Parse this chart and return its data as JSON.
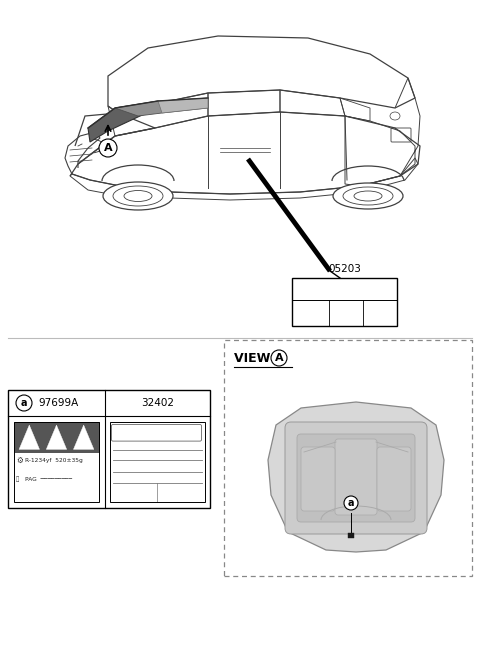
{
  "bg_color": "#ffffff",
  "label_ref": "05203",
  "part_a_code": "97699A",
  "part_b_code": "32402",
  "view_label": "VIEW",
  "circle_A": "A",
  "circle_a": "a",
  "fig_w": 4.8,
  "fig_h": 6.56,
  "dpi": 100,
  "car_line_color": "#404040",
  "hood_dark": "#606060",
  "hood_mid": "#909090",
  "hood_light": "#b8b8b8",
  "body_fill": "#f8f8f8",
  "wheel_color": "#505050",
  "label_box_border": "#000000",
  "dashed_border": "#888888",
  "table_border": "#000000",
  "dark_bar_fill": "#555555",
  "hood_panel_fill": "#cccccc",
  "hood_outer_fill": "#d8d8d8",
  "hood_inner_fill": "#c0c0c0"
}
